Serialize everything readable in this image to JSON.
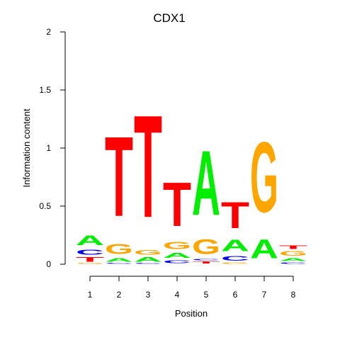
{
  "chart_data": {
    "type": "sequence_logo",
    "title": "CDX1",
    "xlabel": "Position",
    "ylabel": "Information content",
    "ylim": [
      0,
      2
    ],
    "yticks": [
      "0",
      "0.5",
      "1",
      "1.5",
      "2"
    ],
    "positions": [
      "1",
      "2",
      "3",
      "4",
      "5",
      "6",
      "7",
      "8"
    ],
    "colors": {
      "A": "#00ee00",
      "C": "#0000ee",
      "G": "#ffa500",
      "T": "#ff0000"
    },
    "columns": [
      {
        "position": "1",
        "stack": [
          {
            "letter": "G",
            "height": 0.01
          },
          {
            "letter": "T",
            "height": 0.06
          },
          {
            "letter": "C",
            "height": 0.07
          },
          {
            "letter": "A",
            "height": 0.13
          }
        ]
      },
      {
        "position": "2",
        "stack": [
          {
            "letter": "C",
            "height": 0.01
          },
          {
            "letter": "A",
            "height": 0.05
          },
          {
            "letter": "G",
            "height": 0.14
          },
          {
            "letter": "T",
            "height": 1.1
          }
        ]
      },
      {
        "position": "3",
        "stack": [
          {
            "letter": "C",
            "height": 0.01
          },
          {
            "letter": "A",
            "height": 0.06
          },
          {
            "letter": "G",
            "height": 0.06
          },
          {
            "letter": "T",
            "height": 1.41
          }
        ]
      },
      {
        "position": "4",
        "stack": [
          {
            "letter": "C",
            "height": 0.04
          },
          {
            "letter": "A",
            "height": 0.07
          },
          {
            "letter": "G",
            "height": 0.1
          },
          {
            "letter": "T",
            "height": 0.6
          }
        ]
      },
      {
        "position": "5",
        "stack": [
          {
            "letter": "T",
            "height": 0.03
          },
          {
            "letter": "C",
            "height": 0.02
          },
          {
            "letter": "G",
            "height": 0.2
          },
          {
            "letter": "A",
            "height": 0.89
          }
        ]
      },
      {
        "position": "6",
        "stack": [
          {
            "letter": "G",
            "height": 0.02
          },
          {
            "letter": "C",
            "height": 0.06
          },
          {
            "letter": "A",
            "height": 0.16
          },
          {
            "letter": "T",
            "height": 0.36
          }
        ]
      },
      {
        "position": "7",
        "stack": [
          {
            "letter": "A",
            "height": 0.26
          },
          {
            "letter": "G",
            "height": 0.97
          }
        ]
      },
      {
        "position": "8",
        "stack": [
          {
            "letter": "C",
            "height": 0.02
          },
          {
            "letter": "A",
            "height": 0.04
          },
          {
            "letter": "G",
            "height": 0.06
          },
          {
            "letter": "T",
            "height": 0.05
          }
        ]
      }
    ]
  }
}
